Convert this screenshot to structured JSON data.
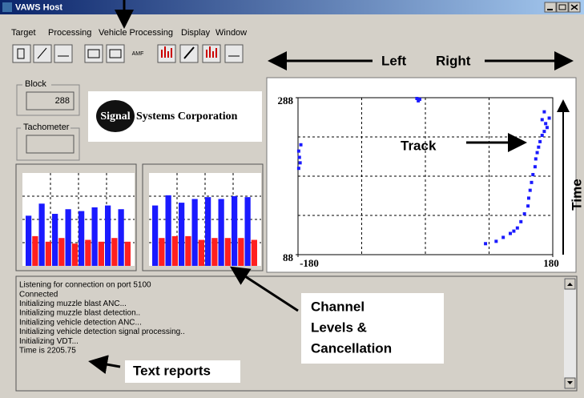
{
  "window": {
    "title": "VAWS Host"
  },
  "menu": [
    "Target",
    "Processing",
    "Vehicle Processing",
    "Display",
    "Window"
  ],
  "toolbar": {
    "amf": "AMF"
  },
  "block": {
    "label": "Block",
    "value": "288"
  },
  "tachometer": {
    "label": "Tachometer"
  },
  "logo": {
    "badge": "Signal",
    "text": "Systems Corporation"
  },
  "channel_levels": {
    "blue_color": "#1a1aff",
    "red_color": "#ff2020",
    "panels": [
      {
        "blue": [
          54,
          67,
          56,
          61,
          59,
          63,
          65,
          61
        ],
        "red": [
          32,
          26,
          30,
          24,
          28,
          26,
          30,
          26
        ]
      },
      {
        "blue": [
          65,
          76,
          68,
          72,
          74,
          72,
          75,
          74
        ],
        "red": [
          30,
          32,
          32,
          28,
          30,
          30,
          30,
          28
        ]
      }
    ]
  },
  "plot": {
    "type": "scatter",
    "color": "#1a1aff",
    "xlim": [
      -180,
      180
    ],
    "ylim": [
      88,
      288
    ],
    "xticks": [
      -180,
      180
    ],
    "yticks": [
      88,
      288
    ],
    "grid_x": [
      -90,
      0,
      90
    ],
    "grid_y": [
      138,
      188,
      238
    ],
    "x": [
      -179,
      -178,
      -177,
      -179,
      -176,
      -12,
      -10,
      -8,
      165,
      170,
      172,
      168,
      165,
      162,
      160,
      158,
      156,
      155,
      152,
      150,
      148,
      146,
      145,
      140,
      135,
      130,
      125,
      120,
      110,
      100,
      85,
      175,
      168
    ],
    "y": [
      220,
      212,
      205,
      198,
      228,
      287,
      284,
      286,
      260,
      255,
      250,
      245,
      240,
      232,
      225,
      218,
      210,
      200,
      190,
      180,
      170,
      160,
      150,
      140,
      130,
      122,
      118,
      115,
      110,
      105,
      102,
      262,
      270
    ]
  },
  "log": [
    "Listening for connection on port 5100",
    "Connected",
    "Initializing muzzle blast ANC...",
    "Initializing muzzle blast detection..",
    "Initializing vehicle detection ANC...",
    "Initializing vehicle detection signal processing..",
    "Initializing VDT...",
    "Time is  2205.75"
  ],
  "annotations": {
    "left": "Left",
    "right": "Right",
    "track": "Track",
    "time": "Time",
    "channels": [
      "Channel",
      "Levels &",
      "Cancellation"
    ],
    "text_reports": "Text reports"
  }
}
